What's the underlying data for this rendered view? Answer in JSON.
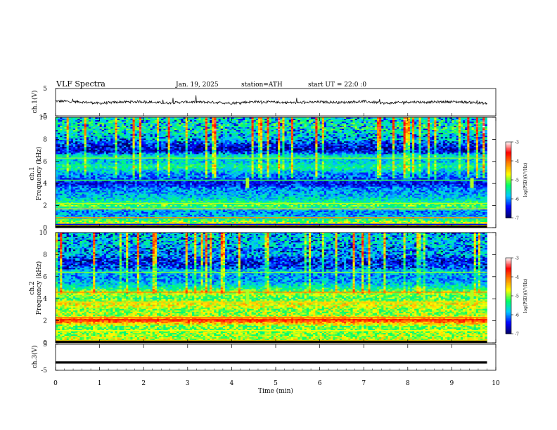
{
  "header": {
    "title": "VLF  Spectra",
    "date": "Jan. 19, 2025",
    "station": "station=ATH",
    "start_ut": "start  UT  =   22:0  :0"
  },
  "axes": {
    "ch1_wave_label": "ch.1(V)",
    "ch1_spec_label_top": "ch.1",
    "ch1_spec_label_bottom": "Frequency  (kHz)",
    "ch2_spec_label_top": "ch.2",
    "ch2_spec_label_bottom": "Frequency  (kHz)",
    "ch3_wave_label": "ch.3(V)",
    "x_label": "Time  (min)",
    "colorbar_label": "log(PSD)(V²/Hz)"
  },
  "colors": {
    "cmap": [
      "#000066",
      "#0000ff",
      "#00c8ff",
      "#00ff66",
      "#ffff00",
      "#ff8800",
      "#ff0000",
      "#ffffff"
    ],
    "trace": "#000000"
  },
  "chart_data": [
    {
      "type": "line",
      "name": "ch1-waveform",
      "ylabel": "ch.1(V)",
      "ylim": [
        -5,
        5
      ],
      "yticks": [
        5,
        -5
      ],
      "xlim": [
        0,
        10
      ],
      "x": [
        0,
        0.5,
        1,
        1.5,
        2,
        2.5,
        3,
        3.5,
        4,
        4.5,
        5,
        5.5,
        6,
        6.5,
        7,
        7.5,
        8,
        8.5,
        9,
        9.5,
        9.8
      ],
      "y": [
        0.4,
        0.2,
        -0.4,
        0.1,
        0.2,
        -0.3,
        0.1,
        0.0,
        -0.3,
        0.2,
        0.0,
        -0.2,
        0.1,
        -0.1,
        0.3,
        -0.4,
        0.1,
        0.0,
        0.2,
        -0.1,
        -0.5
      ]
    },
    {
      "type": "heatmap",
      "name": "ch1-spectrogram",
      "ylabel": "Frequency  (kHz)",
      "xlim": [
        0,
        10
      ],
      "ylim": [
        0,
        10
      ],
      "yticks": [
        0,
        2,
        4,
        6,
        8,
        10
      ],
      "data_end_min": 9.8,
      "colorbar": {
        "label": "log(PSD)(V²/Hz)",
        "range": [
          -7,
          -3
        ],
        "ticks": [
          -3,
          -4,
          -5,
          -6,
          -7
        ]
      },
      "level_profile_khz": [
        [
          0,
          -4.5
        ],
        [
          0.5,
          -4.9
        ],
        [
          1,
          -5.9
        ],
        [
          1.5,
          -6.0
        ],
        [
          2,
          -5.1
        ],
        [
          2.5,
          -5.6
        ],
        [
          3,
          -5.9
        ],
        [
          3.5,
          -6.0
        ],
        [
          4,
          -6.5
        ],
        [
          4.5,
          -6.2
        ],
        [
          5,
          -5.9
        ],
        [
          5.5,
          -5.4
        ],
        [
          6,
          -5.8
        ],
        [
          6.5,
          -5.6
        ],
        [
          7,
          -6.5
        ],
        [
          7.5,
          -6.3
        ],
        [
          8,
          -5.7
        ],
        [
          8.5,
          -5.6
        ],
        [
          9,
          -5.3
        ],
        [
          10,
          -5.5
        ]
      ],
      "horizontal_lines": [
        {
          "khz": 0.3,
          "level": -6.5
        },
        {
          "khz": 0.9,
          "level": -4.2
        },
        {
          "khz": 1.7,
          "level": -4.6
        },
        {
          "khz": 2.2,
          "level": -4.9
        },
        {
          "khz": 4.3,
          "level": -5.2
        },
        {
          "khz": 6.3,
          "level": -5.0
        }
      ],
      "features": [
        {
          "t_min": 4.35,
          "f_khz": [
            3.6,
            4.5
          ]
        },
        {
          "t_min": 9.45,
          "f_khz": [
            3.6,
            4.5
          ]
        }
      ]
    },
    {
      "type": "heatmap",
      "name": "ch2-spectrogram",
      "ylabel": "Frequency  (kHz)",
      "xlim": [
        0,
        10
      ],
      "ylim": [
        0,
        10
      ],
      "yticks": [
        0,
        2,
        4,
        6,
        8,
        10
      ],
      "data_end_min": 9.8,
      "colorbar": {
        "label": "log(PSD)(V²/Hz)",
        "range": [
          -7,
          -3
        ],
        "ticks": [
          -3,
          -4,
          -5,
          -6,
          -7
        ]
      },
      "level_profile_khz": [
        [
          0,
          -4.6
        ],
        [
          0.5,
          -4.9
        ],
        [
          1,
          -5.0
        ],
        [
          1.5,
          -5.1
        ],
        [
          2,
          -3.8
        ],
        [
          2.5,
          -4.9
        ],
        [
          3,
          -5.0
        ],
        [
          3.5,
          -4.6
        ],
        [
          4,
          -5.2
        ],
        [
          4.5,
          -4.8
        ],
        [
          5,
          -5.5
        ],
        [
          5.5,
          -5.9
        ],
        [
          6,
          -6.0
        ],
        [
          6.5,
          -5.8
        ],
        [
          7,
          -6.2
        ],
        [
          7.5,
          -6.3
        ],
        [
          8,
          -5.8
        ],
        [
          8.5,
          -5.9
        ],
        [
          9,
          -5.6
        ],
        [
          10,
          -5.7
        ]
      ],
      "horizontal_lines": [
        {
          "khz": 0.2,
          "level": -4.6
        },
        {
          "khz": 1.1,
          "level": -4.7
        },
        {
          "khz": 2.1,
          "level": -3.6
        },
        {
          "khz": 2.3,
          "level": -4.0
        },
        {
          "khz": 3.7,
          "level": -4.5
        },
        {
          "khz": 4.6,
          "level": -4.1
        },
        {
          "khz": 6.4,
          "level": -5.0
        }
      ],
      "features": [
        {
          "t_min": 4.35,
          "f_khz": [
            3.5,
            4.8
          ]
        },
        {
          "t_min": 9.45,
          "f_khz": [
            3.5,
            4.8
          ]
        }
      ]
    },
    {
      "type": "line",
      "name": "ch3-waveform",
      "ylabel": "ch.3(V)",
      "ylim": [
        -5,
        5
      ],
      "yticks": [
        5,
        -5
      ],
      "xlim": [
        0,
        10
      ],
      "x": [
        0,
        9.8
      ],
      "y": [
        -2,
        -2
      ]
    },
    {
      "type": "axis",
      "name": "time-axis",
      "xlabel": "Time  (min)",
      "xticks": [
        0,
        1,
        2,
        3,
        4,
        5,
        6,
        7,
        8,
        9,
        10
      ]
    }
  ]
}
